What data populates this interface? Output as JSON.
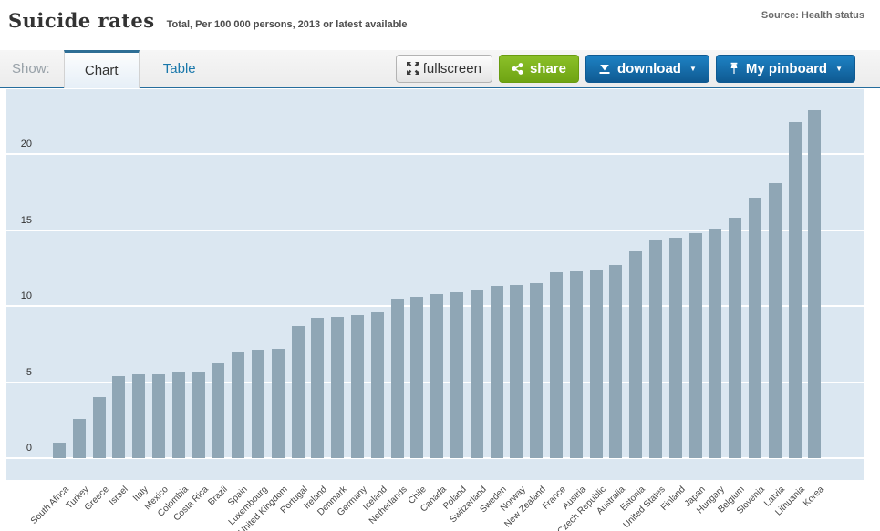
{
  "header": {
    "title": "Suicide rates",
    "subtitle": "Total, Per 100 000 persons, 2013 or latest available",
    "source": "Source: Health status"
  },
  "toolbar": {
    "show_label": "Show:",
    "tabs": [
      {
        "label": "Chart",
        "active": true
      },
      {
        "label": "Table",
        "active": false
      }
    ],
    "buttons": {
      "fullscreen": {
        "label": "fullscreen",
        "icon": "fullscreen-icon"
      },
      "share": {
        "label": "share",
        "icon": "share-icon"
      },
      "download": {
        "label": "download",
        "icon": "download-icon",
        "caret": "▼"
      },
      "pinboard": {
        "label": "My pinboard",
        "icon": "pin-icon",
        "caret": "▼"
      }
    }
  },
  "colors": {
    "accent_blue": "#1a78ab",
    "toolbar_rule_blue": "#256d9d",
    "button_green": "#78b120",
    "button_blue": "#14639c",
    "bar": "#8fa6b5",
    "plot_background": "#dbe7f1",
    "gridline": "#ffffff"
  },
  "chart_data": {
    "type": "bar",
    "title": "Suicide rates",
    "subtitle": "Total, Per 100 000 persons, 2013 or latest available",
    "xlabel": "",
    "ylabel": "",
    "ylim": [
      0,
      24
    ],
    "yticks": [
      0,
      5,
      10,
      15,
      20
    ],
    "grid": true,
    "legend": false,
    "categories": [
      "South Africa",
      "Turkey",
      "Greece",
      "Israel",
      "Italy",
      "Mexico",
      "Colombia",
      "Costa Rica",
      "Brazil",
      "Spain",
      "Luxembourg",
      "United Kingdom",
      "Portugal",
      "Ireland",
      "Denmark",
      "Germany",
      "Iceland",
      "Netherlands",
      "Chile",
      "Canada",
      "Poland",
      "Switzerland",
      "Sweden",
      "Norway",
      "New Zealand",
      "France",
      "Austria",
      "Czech Republic",
      "Australia",
      "Estonia",
      "United States",
      "Finland",
      "Japan",
      "Hungary",
      "Belgium",
      "Slovenia",
      "Latvia",
      "Lithuania",
      "Korea"
    ],
    "values": [
      1.0,
      2.6,
      4.0,
      5.4,
      5.5,
      5.5,
      5.7,
      5.7,
      6.3,
      7.0,
      7.1,
      7.2,
      8.7,
      9.2,
      9.3,
      9.4,
      9.6,
      10.5,
      10.6,
      10.8,
      10.9,
      11.1,
      11.3,
      11.4,
      11.5,
      12.2,
      12.3,
      12.4,
      12.7,
      13.6,
      14.4,
      14.5,
      14.8,
      15.1,
      15.8,
      17.1,
      18.1,
      22.1,
      22.9
    ]
  }
}
